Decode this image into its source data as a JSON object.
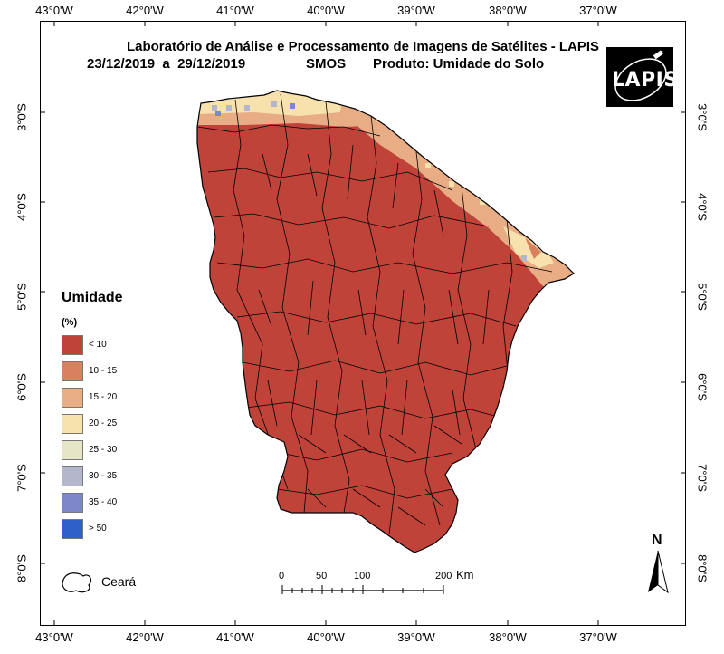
{
  "map": {
    "title": "Laboratório de Análise e Processamento de Imagens de Satélites - LAPIS",
    "period": "23/12/2019  a  29/12/2019",
    "sensor": "SMOS",
    "product": "Produto: Umidade do Solo",
    "logo_text": "LAPIS",
    "region": "Ceará"
  },
  "grid": {
    "longitude_labels": [
      "43°0'W",
      "42°0'W",
      "41°0'W",
      "40°0'W",
      "39°0'W",
      "38°0'W",
      "37°0'W"
    ],
    "latitude_labels": [
      "3°0'S",
      "4°0'S",
      "5°0'S",
      "6°0'S",
      "7°0'S",
      "8°0'S"
    ]
  },
  "legend": {
    "title": "Umidade",
    "unit": "(%)",
    "classes": [
      {
        "label": "< 10",
        "color": "#c0433a"
      },
      {
        "label": "10 - 15",
        "color": "#d9805e"
      },
      {
        "label": "15 - 20",
        "color": "#e8ad85"
      },
      {
        "label": "20 - 25",
        "color": "#f7e2ad"
      },
      {
        "label": "25 - 30",
        "color": "#e6e6c6"
      },
      {
        "label": "30 - 35",
        "color": "#b4b6cc"
      },
      {
        "label": "35 - 40",
        "color": "#7e87c9"
      },
      {
        "label": "> 50",
        "color": "#2f5fc9"
      }
    ]
  },
  "scale_bar": {
    "ticks": [
      "0",
      "50",
      "100",
      "200"
    ],
    "unit": "Km"
  },
  "north_arrow": {
    "label": "N"
  },
  "colors": {
    "boundary": "#000000",
    "dry": "#c0433a",
    "coastal_low": "#e8ad85",
    "coastal_mid": "#f7e2ad"
  }
}
